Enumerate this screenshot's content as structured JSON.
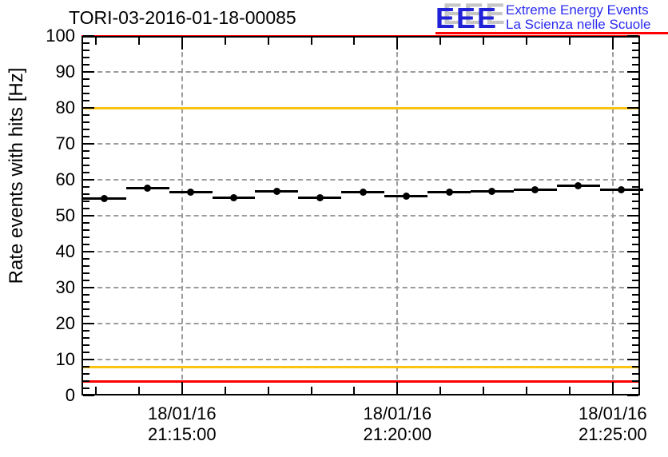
{
  "header": {
    "title": "TORI-03-2016-01-18-00085",
    "logo": {
      "acronym": "EEE",
      "tagline_line1": "Extreme Energy Events",
      "tagline_line2": "La Scienza nelle Scuole",
      "acronym_color": "#2121d8",
      "shadow_color": "#c6c6c6",
      "tagline_color": "#2a2af0",
      "underline_color": "#ff0000"
    }
  },
  "chart_data": {
    "type": "scatter",
    "title": "TORI-03-2016-01-18-00085",
    "xlabel": "",
    "ylabel": "Rate events with hits [Hz]",
    "ylim": [
      0,
      100
    ],
    "y_tick_labels": [
      0,
      10,
      20,
      30,
      40,
      50,
      60,
      70,
      80,
      90,
      100
    ],
    "y_minor_step": 2,
    "y_major_step": 10,
    "grid": "dashed gray at major ticks, x and y",
    "x_axis": {
      "date": "18/01/16",
      "start_s": -140,
      "end_s": 638,
      "minor_step_s": 60,
      "minor_start_s": -120,
      "major_s": [
        0,
        300,
        600
      ]
    },
    "x_tick_labels": [
      {
        "date": "18/01/16",
        "time": "21:15:00",
        "s": 0
      },
      {
        "date": "18/01/16",
        "time": "21:20:00",
        "s": 300
      },
      {
        "date": "18/01/16",
        "time": "21:25:00",
        "s": 600
      }
    ],
    "threshold_lines": [
      {
        "value": 100,
        "color": "#ff0000"
      },
      {
        "value": 80,
        "color": "#fcc411"
      },
      {
        "value": 8,
        "color": "#fcc411"
      },
      {
        "value": 4,
        "color": "#ff0000"
      }
    ],
    "marker_color": "#000000",
    "xerr_s": 30,
    "yerr_hz": 0.4,
    "points": [
      {
        "time": "21:13:12",
        "s": -108,
        "rate_hz": 54.8
      },
      {
        "time": "21:14:12",
        "s": -48,
        "rate_hz": 57.6
      },
      {
        "time": "21:15:12",
        "s": 12,
        "rate_hz": 56.6
      },
      {
        "time": "21:16:12",
        "s": 72,
        "rate_hz": 55.1
      },
      {
        "time": "21:17:12",
        "s": 132,
        "rate_hz": 56.8
      },
      {
        "time": "21:18:12",
        "s": 192,
        "rate_hz": 54.9
      },
      {
        "time": "21:19:12",
        "s": 252,
        "rate_hz": 56.5
      },
      {
        "time": "21:20:12",
        "s": 312,
        "rate_hz": 55.5
      },
      {
        "time": "21:21:12",
        "s": 372,
        "rate_hz": 56.5
      },
      {
        "time": "21:22:12",
        "s": 432,
        "rate_hz": 56.8
      },
      {
        "time": "21:23:12",
        "s": 492,
        "rate_hz": 57.3
      },
      {
        "time": "21:24:12",
        "s": 552,
        "rate_hz": 58.4
      },
      {
        "time": "21:25:12",
        "s": 612,
        "rate_hz": 57.3
      }
    ]
  }
}
